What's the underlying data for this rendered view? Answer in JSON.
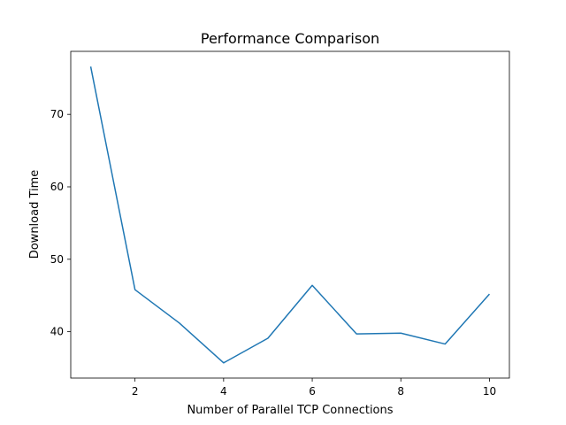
{
  "chart_data": {
    "type": "line",
    "title": "Performance Comparison",
    "xlabel": "Number of Parallel TCP Connections",
    "ylabel": "Download Time",
    "x": [
      1,
      2,
      3,
      4,
      5,
      6,
      7,
      8,
      9,
      10
    ],
    "series": [
      {
        "values": [
          76.6,
          45.8,
          41.2,
          35.7,
          39.1,
          46.4,
          39.7,
          39.8,
          38.3,
          45.2
        ],
        "color": "#1f77b4"
      }
    ],
    "xlim": [
      0.55,
      10.45
    ],
    "ylim": [
      33.6,
      78.7
    ],
    "xticks": [
      2,
      4,
      6,
      8,
      10
    ],
    "yticks": [
      40,
      50,
      60,
      70
    ],
    "grid": false,
    "legend": "none"
  }
}
